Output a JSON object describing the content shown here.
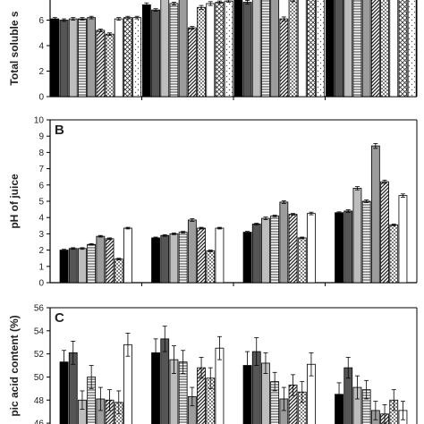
{
  "chart_data": [
    {
      "type": "bar",
      "panel_label": "",
      "ylabel": "Total soluble s",
      "ylim": [
        0,
        8
      ],
      "yticks": [
        0,
        2,
        4,
        6,
        8
      ],
      "groups": 4,
      "series_count": 10,
      "values": [
        [
          6.1,
          6.0,
          6.1,
          6.1,
          6.2,
          5.2,
          4.9,
          6.1,
          6.2,
          6.2
        ],
        [
          7.2,
          6.8,
          7.9,
          7.3,
          7.8,
          5.4,
          7.0,
          7.3,
          7.4,
          7.5
        ],
        [
          8.2,
          7.4,
          9.1,
          8.9,
          9.4,
          6.1,
          7.6,
          8.9,
          8.6,
          8.8
        ],
        [
          9.2,
          9.3,
          9.4,
          9.4,
          9.6,
          9.0,
          9.1,
          9.3,
          9.5,
          9.4
        ]
      ],
      "errors": [
        [
          0.1,
          0.1,
          0.1,
          0.1,
          0.1,
          0.1,
          0.1,
          0.1,
          0.1,
          0.1
        ],
        [
          0.15,
          0.1,
          0.15,
          0.1,
          0.15,
          0.1,
          0.15,
          0.15,
          0.1,
          0.1
        ],
        [
          0.15,
          0.15,
          0.2,
          0.2,
          0.2,
          0.15,
          0.15,
          0.15,
          0.15,
          0.15
        ],
        [
          0.15,
          0.15,
          0.15,
          0.15,
          0.15,
          0.15,
          0.15,
          0.15,
          0.15,
          0.15
        ]
      ]
    },
    {
      "type": "bar",
      "panel_label": "B",
      "ylabel": "pH of juice",
      "ylim": [
        0,
        10
      ],
      "yticks": [
        0,
        1,
        2,
        3,
        4,
        5,
        6,
        7,
        8,
        9,
        10
      ],
      "groups": 4,
      "series_count": 10,
      "values": [
        [
          2.0,
          2.1,
          2.1,
          2.35,
          2.85,
          2.7,
          1.45,
          3.35,
          0,
          0
        ],
        [
          2.75,
          2.9,
          3.0,
          3.1,
          3.85,
          3.35,
          1.95,
          3.35,
          0,
          0
        ],
        [
          3.1,
          3.6,
          3.95,
          4.1,
          4.95,
          4.2,
          2.75,
          4.25,
          0,
          0
        ],
        [
          4.3,
          4.4,
          5.8,
          5.0,
          8.4,
          6.2,
          3.55,
          5.35,
          0,
          0
        ]
      ],
      "errors": [
        [
          0.05,
          0.05,
          0.05,
          0.05,
          0.05,
          0.05,
          0.05,
          0.05,
          0,
          0
        ],
        [
          0.05,
          0.05,
          0.05,
          0.05,
          0.08,
          0.05,
          0.05,
          0.05,
          0,
          0
        ],
        [
          0.05,
          0.05,
          0.08,
          0.05,
          0.08,
          0.05,
          0.05,
          0.08,
          0,
          0
        ],
        [
          0.05,
          0.08,
          0.1,
          0.08,
          0.15,
          0.1,
          0.05,
          0.1,
          0,
          0
        ]
      ]
    },
    {
      "type": "bar",
      "panel_label": "C",
      "ylabel": "pic acid content (%)",
      "ylim": [
        45,
        56
      ],
      "yticks": [
        46,
        48,
        50,
        52,
        54,
        56
      ],
      "groups": 4,
      "series_count": 10,
      "values": [
        [
          51.3,
          52.1,
          48.0,
          50.0,
          48.1,
          48.0,
          47.8,
          52.8,
          0,
          0
        ],
        [
          52.1,
          53.3,
          51.5,
          51.3,
          48.3,
          50.8,
          49.9,
          52.5,
          0,
          0
        ],
        [
          51.0,
          52.2,
          51.2,
          49.6,
          48.1,
          49.3,
          48.7,
          51.1,
          0,
          0
        ],
        [
          48.5,
          50.8,
          49.1,
          48.9,
          47.1,
          46.8,
          48.0,
          47.1,
          0,
          0
        ]
      ],
      "errors": [
        [
          1.0,
          1.0,
          0.8,
          1.0,
          1.0,
          0.9,
          1.0,
          1.0,
          0,
          0
        ],
        [
          1.2,
          1.1,
          1.2,
          1.0,
          0.8,
          0.9,
          0.9,
          1.0,
          0,
          0
        ],
        [
          1.2,
          1.2,
          0.9,
          0.8,
          1.0,
          0.9,
          0.9,
          1.0,
          0,
          0
        ],
        [
          1.0,
          0.9,
          1.0,
          0.8,
          0.8,
          0.8,
          0.9,
          0.8,
          0,
          0
        ]
      ]
    }
  ],
  "style": {
    "fills": [
      "#000000",
      "#555555",
      "#bdbdbd",
      "pattern-hlines",
      "#9c9c9c",
      "pattern-diag",
      "pattern-dots",
      "#ffffff",
      "pattern-crosshatch",
      "pattern-sparse-dots"
    ],
    "bar_stroke": "#000000",
    "axis_color": "#000000"
  }
}
